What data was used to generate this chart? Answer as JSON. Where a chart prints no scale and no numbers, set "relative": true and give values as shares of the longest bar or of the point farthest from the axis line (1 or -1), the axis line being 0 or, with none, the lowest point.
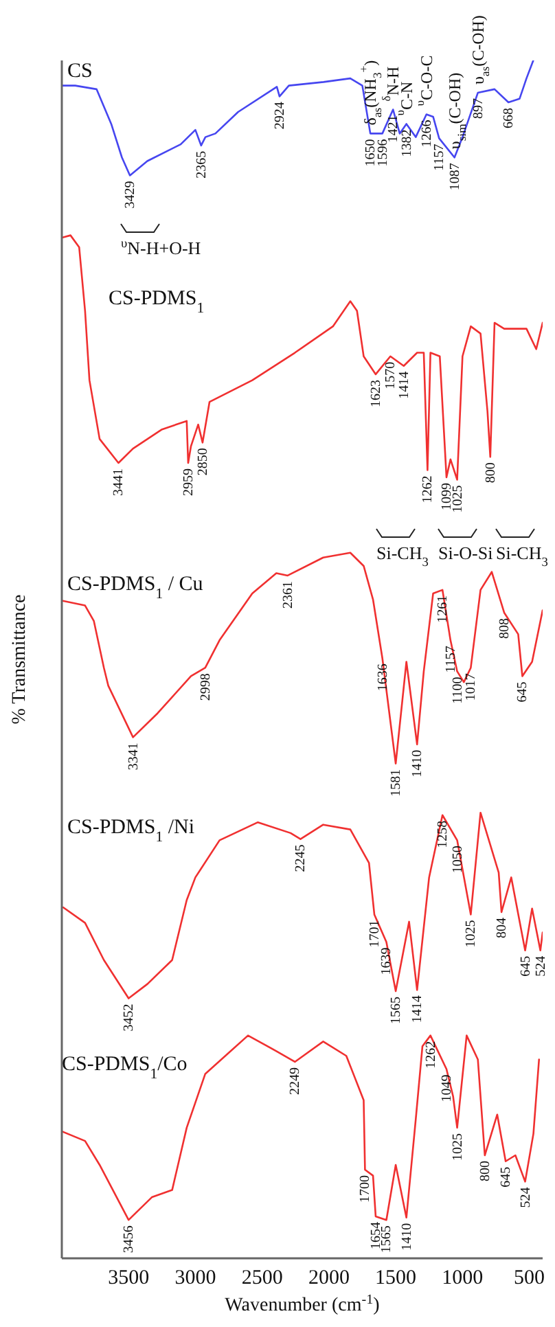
{
  "chart_data": {
    "type": "line",
    "relative": true,
    "xlabel": "Wavenumber (cm$^{-1}$)",
    "ylabel": "% Transmittance",
    "xlim": [
      4000,
      400
    ],
    "xticks": [
      3500,
      3000,
      2500,
      2000,
      1500,
      1000,
      500
    ],
    "series": [
      {
        "name": "CS",
        "color": "#4646f0",
        "x": [
          4000,
          3900,
          3740,
          3630,
          3550,
          3490,
          3360,
          3110,
          3000,
          2957,
          2925,
          2850,
          2680,
          2390,
          2370,
          2300,
          2040,
          1840,
          1750,
          1690,
          1600,
          1520,
          1470,
          1420,
          1350,
          1270,
          1220,
          1175,
          1060,
          1000,
          885,
          760,
          656,
          573,
          521,
          470
        ],
        "values": [
          0.979,
          0.979,
          0.976,
          0.947,
          0.919,
          0.904,
          0.916,
          0.93,
          0.942,
          0.929,
          0.936,
          0.939,
          0.957,
          0.978,
          0.97,
          0.979,
          0.982,
          0.985,
          0.979,
          0.939,
          0.939,
          0.959,
          0.939,
          0.947,
          0.936,
          0.955,
          0.953,
          0.935,
          0.919,
          0.936,
          0.973,
          0.976,
          0.965,
          0.968,
          0.985,
          1
        ]
      },
      {
        "name": "CS-PDMS$_{1}$",
        "color": "#f03030",
        "x": [
          4000,
          3935,
          3870,
          3826,
          3793,
          3717,
          3576,
          3467,
          3250,
          3065,
          3054,
          3033,
          2979,
          2946,
          2894,
          2574,
          2255,
          1970,
          1840,
          1790,
          1740,
          1650,
          1540,
          1440,
          1340,
          1290,
          1262,
          1240,
          1170,
          1120,
          1090,
          1040,
          1000,
          938,
          865,
          813,
          792,
          760,
          688,
          521,
          448,
          400
        ],
        "values": [
          0.852,
          0.854,
          0.844,
          0.791,
          0.733,
          0.684,
          0.664,
          0.676,
          0.692,
          0.699,
          0.664,
          0.678,
          0.696,
          0.681,
          0.715,
          0.733,
          0.756,
          0.778,
          0.799,
          0.791,
          0.753,
          0.738,
          0.753,
          0.745,
          0.756,
          0.756,
          0.658,
          0.756,
          0.753,
          0.652,
          0.667,
          0.65,
          0.753,
          0.778,
          0.772,
          0.707,
          0.669,
          0.781,
          0.776,
          0.776,
          0.759,
          0.781
        ]
      },
      {
        "name": "CS-PDMS$_{1}$ / Cu",
        "color": "#f03030",
        "x": [
          4000,
          3826,
          3760,
          3685,
          3652,
          3467,
          3283,
          3033,
          2926,
          2819,
          2574,
          2394,
          2309,
          2043,
          1840,
          1740,
          1670,
          1600,
          1500,
          1420,
          1340,
          1290,
          1220,
          1150,
          1090,
          1040,
          990,
          938,
          865,
          781,
          688,
          583,
          552,
          479,
          400
        ],
        "values": [
          0.549,
          0.545,
          0.532,
          0.493,
          0.478,
          0.435,
          0.455,
          0.486,
          0.493,
          0.516,
          0.555,
          0.572,
          0.57,
          0.585,
          0.589,
          0.578,
          0.55,
          0.501,
          0.413,
          0.498,
          0.429,
          0.49,
          0.555,
          0.558,
          0.516,
          0.49,
          0.481,
          0.493,
          0.558,
          0.573,
          0.539,
          0.521,
          0.486,
          0.498,
          0.541
        ]
      },
      {
        "name": "CS-PDMS$_{1}$ /Ni",
        "color": "#f03030",
        "x": [
          3990,
          3826,
          3685,
          3500,
          3359,
          3174,
          3065,
          3000,
          2819,
          2532,
          2287,
          2213,
          2043,
          1840,
          1700,
          1660,
          1570,
          1500,
          1400,
          1340,
          1250,
          1150,
          1040,
          938,
          865,
          729,
          708,
          635,
          531,
          479,
          417,
          400
        ],
        "values": [
          0.293,
          0.28,
          0.249,
          0.217,
          0.229,
          0.249,
          0.299,
          0.318,
          0.349,
          0.364,
          0.355,
          0.35,
          0.362,
          0.358,
          0.33,
          0.287,
          0.264,
          0.223,
          0.281,
          0.224,
          0.318,
          0.37,
          0.349,
          0.287,
          0.372,
          0.322,
          0.289,
          0.318,
          0.257,
          0.292,
          0.257,
          0.272
        ]
      },
      {
        "name": "CS-PDMS$_{1}$/Co",
        "color": "#f03030",
        "x": [
          4000,
          3826,
          3717,
          3500,
          3326,
          3174,
          3065,
          2926,
          2606,
          2394,
          2255,
          2043,
          1870,
          1740,
          1730,
          1670,
          1650,
          1570,
          1500,
          1420,
          1350,
          1300,
          1240,
          1120,
          1070,
          1040,
          969,
          885,
          833,
          740,
          677,
          604,
          531,
          469,
          427
        ],
        "values": [
          0.106,
          0.098,
          0.078,
          0.032,
          0.051,
          0.057,
          0.109,
          0.154,
          0.186,
          0.173,
          0.164,
          0.181,
          0.169,
          0.132,
          0.074,
          0.069,
          0.035,
          0.032,
          0.078,
          0.034,
          0.116,
          0.177,
          0.186,
          0.158,
          0.135,
          0.109,
          0.186,
          0.166,
          0.086,
          0.12,
          0.081,
          0.086,
          0.064,
          0.104,
          0.166
        ]
      }
    ],
    "annotations": [
      "$^{υ}$N-H+O-H",
      "Si-CH$_{3}$",
      "Si-O-Si",
      "Si-CH$_{3}$",
      {
        "text": "δ$_{as}$(NH$_{3}$$^{+}$)",
        "x": 1690,
        "y": 0.939
      },
      {
        "text": "$^{δ}$N-H",
        "x": 1520,
        "y": 0.959
      },
      {
        "text": "$^{υ}$C-N",
        "x": 1420,
        "y": 0.947
      },
      {
        "text": "$^{υ}$C-O-C",
        "x": 1270,
        "y": 0.955
      },
      {
        "text": "υ$_{sim}$(C-OH)",
        "x": 1060,
        "y": 0.919
      },
      {
        "text": "υ$_{as}$(C-OH)",
        "x": 885,
        "y": 0.973
      },
      {
        "text": "3429",
        "x": 3490,
        "y": 0.904
      },
      {
        "text": "2365",
        "x": 2957,
        "y": 0.929
      },
      {
        "text": "2924",
        "x": 2370,
        "y": 0.97
      },
      {
        "text": "1650",
        "x": 1690,
        "y": 0.939
      },
      {
        "text": "1596",
        "x": 1600,
        "y": 0.939
      },
      {
        "text": "1421",
        "x": 1520,
        "y": 0.959
      },
      {
        "text": "1382",
        "x": 1420,
        "y": 0.947
      },
      {
        "text": "1266",
        "x": 1270,
        "y": 0.955
      },
      {
        "text": "1157",
        "x": 1175,
        "y": 0.935
      },
      {
        "text": "1087",
        "x": 1060,
        "y": 0.919
      },
      {
        "text": "897",
        "x": 885,
        "y": 0.973
      },
      {
        "text": "668",
        "x": 656,
        "y": 0.965
      },
      {
        "text": "3441",
        "x": 3576,
        "y": 0.664
      },
      {
        "text": "2959",
        "x": 3054,
        "y": 0.664
      },
      {
        "text": "2850",
        "x": 2946,
        "y": 0.681
      },
      {
        "text": "1623",
        "x": 1650,
        "y": 0.738
      },
      {
        "text": "1570",
        "x": 1540,
        "y": 0.753
      },
      {
        "text": "1414",
        "x": 1440,
        "y": 0.745
      },
      {
        "text": "1262",
        "x": 1262,
        "y": 0.658
      },
      {
        "text": "1099",
        "x": 1120,
        "y": 0.652
      },
      {
        "text": "1025",
        "x": 1040,
        "y": 0.65
      },
      {
        "text": "800",
        "x": 792,
        "y": 0.669
      },
      {
        "text": "3341",
        "x": 3467,
        "y": 0.435
      },
      {
        "text": "2998",
        "x": 2926,
        "y": 0.493
      },
      {
        "text": "2361",
        "x": 2309,
        "y": 0.57
      },
      {
        "text": "1636",
        "x": 1600,
        "y": 0.501
      },
      {
        "text": "1581",
        "x": 1500,
        "y": 0.413
      },
      {
        "text": "1410",
        "x": 1340,
        "y": 0.429
      },
      {
        "text": "1261",
        "x": 1150,
        "y": 0.558
      },
      {
        "text": "1157",
        "x": 1090,
        "y": 0.516
      },
      {
        "text": "1100",
        "x": 1040,
        "y": 0.49
      },
      {
        "text": "1017",
        "x": 938,
        "y": 0.493
      },
      {
        "text": "808",
        "x": 688,
        "y": 0.539
      },
      {
        "text": "645",
        "x": 552,
        "y": 0.486
      },
      {
        "text": "3452",
        "x": 3500,
        "y": 0.217
      },
      {
        "text": "2245",
        "x": 2213,
        "y": 0.35
      },
      {
        "text": "1701",
        "x": 1660,
        "y": 0.287
      },
      {
        "text": "1639",
        "x": 1570,
        "y": 0.264
      },
      {
        "text": "1565",
        "x": 1500,
        "y": 0.223
      },
      {
        "text": "1414",
        "x": 1340,
        "y": 0.224
      },
      {
        "text": "1258",
        "x": 1150,
        "y": 0.37
      },
      {
        "text": "1050",
        "x": 1040,
        "y": 0.349
      },
      {
        "text": "1025",
        "x": 938,
        "y": 0.287
      },
      {
        "text": "804",
        "x": 708,
        "y": 0.289
      },
      {
        "text": "645",
        "x": 531,
        "y": 0.257
      },
      {
        "text": "524",
        "x": 417,
        "y": 0.257
      },
      {
        "text": "3456",
        "x": 3500,
        "y": 0.032
      },
      {
        "text": "2249",
        "x": 2255,
        "y": 0.164
      },
      {
        "text": "1700",
        "x": 1730,
        "y": 0.074
      },
      {
        "text": "1654",
        "x": 1650,
        "y": 0.035
      },
      {
        "text": "1565",
        "x": 1570,
        "y": 0.032
      },
      {
        "text": "1410",
        "x": 1420,
        "y": 0.034
      },
      {
        "text": "1262",
        "x": 1240,
        "y": 0.186
      },
      {
        "text": "1049",
        "x": 1120,
        "y": 0.158
      },
      {
        "text": "1025",
        "x": 1040,
        "y": 0.109
      },
      {
        "text": "800",
        "x": 833,
        "y": 0.086
      },
      {
        "text": "645",
        "x": 677,
        "y": 0.081
      },
      {
        "text": "524",
        "x": 531,
        "y": 0.064
      }
    ]
  }
}
